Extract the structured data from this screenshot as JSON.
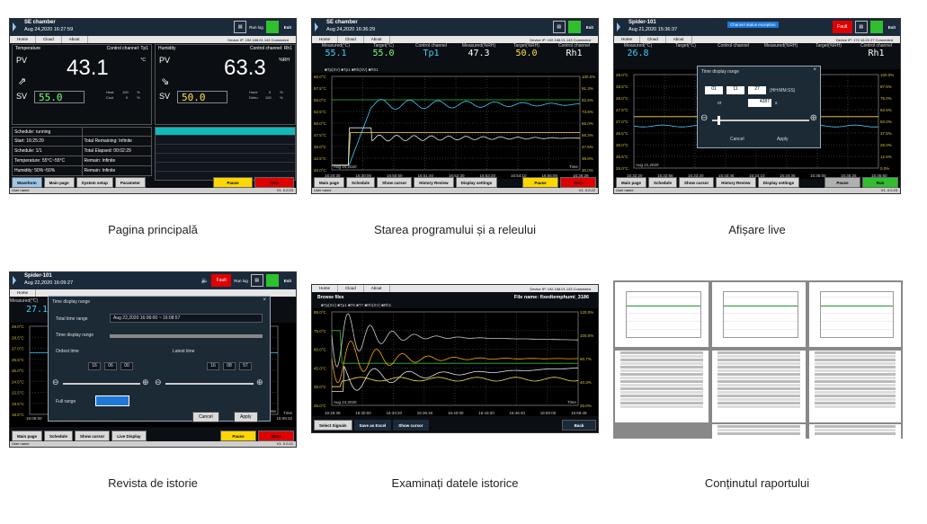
{
  "screens": {
    "s1": {
      "caption": "Pagina principală",
      "title": "SE chamber",
      "date": "Aug 24,2020 16:27:59",
      "menu": [
        "Home",
        "Cloud",
        "About"
      ],
      "device": "Device IP: 192.168.01.143   Connected",
      "temp_label": "Temperature",
      "ctrl_label": "Control channel: Tp1",
      "hum_label": "Humidity",
      "ctrl_label_h": "Control channel: Rh1",
      "pv": "PV",
      "sv": "SV",
      "temp_unit": "°C",
      "hum_unit": "%RH",
      "temp_pv": "43.1",
      "temp_sv": "55.0",
      "hum_pv": "63.3",
      "hum_sv": "50.0",
      "heat": "Heat",
      "cool": "Cool",
      "humi": "Humi",
      "dehu": "Dehu",
      "heat_v": "100",
      "cool_v": "0",
      "humi_v": "0",
      "dehu_v": "100",
      "pct": "%",
      "sched_rows": [
        [
          "Schedule: running",
          ""
        ],
        [
          "Start: 16:25:29",
          "Total Remaining: Infinite"
        ],
        [
          "Schedule: 1/1",
          "Total Elapsed: 00:02:29"
        ],
        [
          "Temperature: 55°C~55°C",
          "Remain: Infinite"
        ],
        [
          "Humidity: 50%~50%",
          "Remain: Infinite"
        ]
      ],
      "buttons": [
        "Waveform",
        "Main page",
        "System setup",
        "Parameter",
        "Pause",
        "Stop"
      ],
      "user": "User name",
      "version": "V1. 0.0.23",
      "run_log": "Run log",
      "exit": "Exit"
    },
    "s2": {
      "caption": "Starea programului și a releului",
      "title": "SE chamber",
      "date": "Aug 24,2020 16:36:29",
      "menu": [
        "Home",
        "Cloud",
        "About"
      ],
      "device": "Device IP: 192.168.01.143   Connected",
      "hdr_labels": [
        "Measured(°C)",
        "Target(°C)",
        "Control channel",
        "Measured(%RH)",
        "Target(%RH)",
        "Control channel"
      ],
      "hdr_vals": [
        "55.1",
        "55.0",
        "Tp1",
        "47.3",
        "50.0",
        "Rh1"
      ],
      "legend": "■Tp(SV) ■Tp1 ■Rh(SV) ■Rh1",
      "y_left": [
        "60.0°C",
        "57.5°C",
        "55.0°C",
        "52.5°C",
        "50.0°C",
        "47.5°C",
        "45.0°C",
        "42.5°C",
        "40.0°C"
      ],
      "y_right": [
        "100.0%",
        "91.3%",
        "82.5%",
        "73.8%",
        "65.0%",
        "56.3%",
        "47.5%",
        "38.8%",
        "30.0%"
      ],
      "x": [
        "16:20:30",
        "16:30:00",
        "16:50:50",
        "16:51:40",
        "16:52:30",
        "16:53:20",
        "16:54:10",
        "16:55:00",
        "16:36:29"
      ],
      "plot_date": "Aug 24,2020",
      "time_label": "Time",
      "buttons": [
        "Main page",
        "Schedule",
        "Show cursor",
        "History Review",
        "Display settings",
        "Pause",
        "Stop"
      ],
      "user": "User name",
      "version": "V1. 0.0.22"
    },
    "s3": {
      "caption": "Afișare live",
      "title": "Spider-101",
      "date": "Aug 21,2020 15:36:37",
      "menu": [
        "Home",
        "Cloud",
        "About"
      ],
      "device": "Device IP: 172.16.22.27   Connected",
      "channel_alert": "Channel status exception",
      "fault": "Fault",
      "hdr_labels": [
        "Measured(°C)",
        "Target(°C)",
        "Control channel",
        "Measured(%RH)",
        "Target(%RH)",
        "Control channel"
      ],
      "hdr_vals": [
        "26.8",
        "",
        "",
        "",
        "",
        "Rh1"
      ],
      "dialog_title": "Time display range",
      "hms": [
        "01",
        "11",
        "27"
      ],
      "hms_unit": "(HH:MM:SS)",
      "or": "or",
      "seconds": "4287",
      "s": "s",
      "cancel": "Cancel",
      "apply": "Apply",
      "y_left": [
        "29.0°C",
        "28.5°C",
        "28.0°C",
        "27.5°C",
        "27.0°C",
        "26.5°C",
        "26.0°C",
        "25.5°C",
        "25.0°C"
      ],
      "y_right": [
        "100.0%",
        "87.5%",
        "75.0%",
        "62.5%",
        "50.0%",
        "37.5%",
        "25.0%",
        "12.5%",
        "0.0%"
      ],
      "x": [
        "15:32:20",
        "15:32:56",
        "15:33:20",
        "15:33:45",
        "15:34:10",
        "15:34:35",
        "15:35:00",
        "15:35:25",
        "15:35:50"
      ],
      "plot_date": "Aug 21,2020",
      "buttons": [
        "Main page",
        "Schedule",
        "Show cursor",
        "History Review",
        "Display settings",
        "Pause",
        "Run"
      ],
      "user": "User name",
      "version": "V1. 0.0.23"
    },
    "s4": {
      "caption": "Revista de istorie",
      "title": "Spider-101",
      "date": "Aug 22,2020 16:09:27",
      "menu": [
        "Home"
      ],
      "fault": "Fault",
      "run_log": "Run log",
      "exit": "Exit",
      "dialog_title": "Time display range",
      "total_label": "Total time range",
      "total_value": "Aug 22,2020 16:06:00 ~ 16:08:57",
      "tdr_label": "Time display range",
      "earliest": "Ordest time",
      "latest": "Latest time",
      "early_hms": [
        "16",
        "06",
        "00"
      ],
      "late_hms": [
        "16",
        "08",
        "57"
      ],
      "full_range": "Full range",
      "cancel": "Cancel",
      "apply": "Apply",
      "measured": "Measured(°C)",
      "pv": "27.1",
      "y_left": [
        "29.0°C",
        "28.5°C",
        "27.0°C",
        "25.5°C",
        "25.0°C",
        "24.5°C",
        "22.5°C",
        "19.5°C",
        "18.5°C"
      ],
      "x_first": "16:06:00",
      "x_last": "16:09:32",
      "time_label": "Time",
      "buttons": [
        "Main page",
        "Schedule",
        "Show cursor",
        "Live Display",
        "Pause",
        "Stop"
      ],
      "user": "User name",
      "version": "V1. 0.0.21"
    },
    "s5": {
      "caption": "Examinați datele istorice",
      "menu": [
        "Home",
        "Cloud",
        "About"
      ],
      "device": "Device IP: 192.168.01.143   Connected",
      "browse": "Browse files",
      "file": "File name: fixedtemphumi_3186",
      "legend": "■Tp(SV) ■Tp1 ■T6 ■T7 ■Rh(SV) ■Rh1",
      "y_left": [
        "85.0°C",
        "75.0°C",
        "60.0°C",
        "45.0°C",
        "30.0°C",
        "25.0°C"
      ],
      "y_right": [
        "120.0%",
        "100.0%",
        "60.7%",
        "40.3%",
        "20.0%"
      ],
      "x": [
        "16:25:38",
        "16:30:00",
        "16:33:20",
        "16:36:40",
        "16:40:00",
        "16:43:20",
        "16:46:40",
        "16:50:00",
        "16:58:49"
      ],
      "plot_date": "Aug 24,2020",
      "time_label": "Time",
      "buttons": [
        "Select Signals",
        "Save as Excel",
        "Show cursor",
        "Back"
      ]
    },
    "s6": {
      "caption": "Conținutul raportului"
    }
  }
}
